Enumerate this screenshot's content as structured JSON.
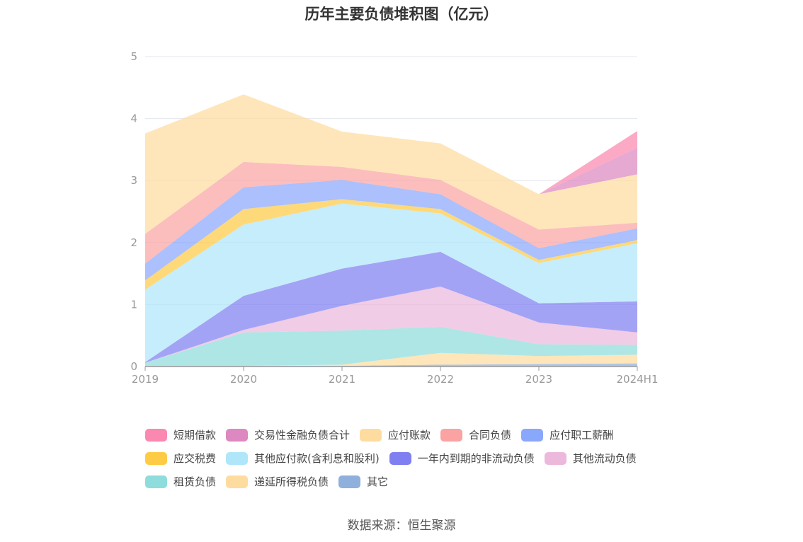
{
  "chart_data": {
    "type": "area",
    "stacked": true,
    "title": "历年主要负债堆积图（亿元）",
    "categories": [
      "2019",
      "2020",
      "2021",
      "2022",
      "2023",
      "2024H1"
    ],
    "y_ticks": [
      "0",
      "1",
      "2",
      "3",
      "4",
      "5"
    ],
    "ylim": [
      0,
      5
    ],
    "grid": true,
    "legend_position": "bottom",
    "series": [
      {
        "name": "其它",
        "color": "#8fb0dc",
        "values": [
          0.01,
          0.01,
          0.01,
          0.03,
          0.04,
          0.05
        ]
      },
      {
        "name": "递延所得税负债",
        "color": "#fedca0",
        "values": [
          0.0,
          0.0,
          0.02,
          0.19,
          0.13,
          0.14
        ]
      },
      {
        "name": "租赁负债",
        "color": "#8fdcdc",
        "values": [
          0.05,
          0.54,
          0.55,
          0.42,
          0.19,
          0.16
        ]
      },
      {
        "name": "其他流动负债",
        "color": "#ecb9dc",
        "values": [
          0.0,
          0.04,
          0.4,
          0.65,
          0.35,
          0.2
        ]
      },
      {
        "name": "一年内到期的非流动负债",
        "color": "#7f7ff2",
        "values": [
          0.01,
          0.55,
          0.6,
          0.56,
          0.31,
          0.5
        ]
      },
      {
        "name": "其他应付款(含利息和股利)",
        "color": "#b0e6fa",
        "values": [
          1.17,
          1.15,
          1.05,
          0.62,
          0.65,
          0.94
        ]
      },
      {
        "name": "应交税费",
        "color": "#fecb45",
        "values": [
          0.15,
          0.25,
          0.07,
          0.07,
          0.05,
          0.05
        ]
      },
      {
        "name": "应付职工薪酬",
        "color": "#8aa8fb",
        "values": [
          0.27,
          0.35,
          0.31,
          0.24,
          0.19,
          0.19
        ]
      },
      {
        "name": "合同负债",
        "color": "#fba3a3",
        "values": [
          0.48,
          0.41,
          0.21,
          0.23,
          0.3,
          0.09
        ]
      },
      {
        "name": "应付账款",
        "color": "#fedca0",
        "values": [
          1.62,
          1.09,
          0.57,
          0.59,
          0.57,
          0.78
        ]
      },
      {
        "name": "交易性金融负债合计",
        "color": "#dd88c0",
        "values": [
          0.0,
          0.0,
          0.0,
          0.0,
          0.0,
          0.43
        ]
      },
      {
        "name": "短期借款",
        "color": "#fb88b0",
        "values": [
          0.0,
          0.0,
          0.0,
          0.0,
          0.0,
          0.27
        ]
      }
    ]
  },
  "legend": [
    [
      {
        "label": "短期借款",
        "color": "#fb88b0"
      },
      {
        "label": "交易性金融负债合计",
        "color": "#dd88c0"
      },
      {
        "label": "应付账款",
        "color": "#fedca0"
      },
      {
        "label": "合同负债",
        "color": "#fba3a3"
      },
      {
        "label": "应付职工薪酬",
        "color": "#8aa8fb"
      }
    ],
    [
      {
        "label": "应交税费",
        "color": "#fecb45"
      },
      {
        "label": "其他应付款(含利息和股利)",
        "color": "#b0e6fa"
      },
      {
        "label": "一年内到期的非流动负债",
        "color": "#7f7ff2"
      },
      {
        "label": "其他流动负债",
        "color": "#ecb9dc"
      }
    ],
    [
      {
        "label": "租赁负债",
        "color": "#8fdcdc"
      },
      {
        "label": "递延所得税负债",
        "color": "#fedca0"
      },
      {
        "label": "其它",
        "color": "#8fb0dc"
      }
    ]
  ],
  "source": "数据来源：恒生聚源"
}
